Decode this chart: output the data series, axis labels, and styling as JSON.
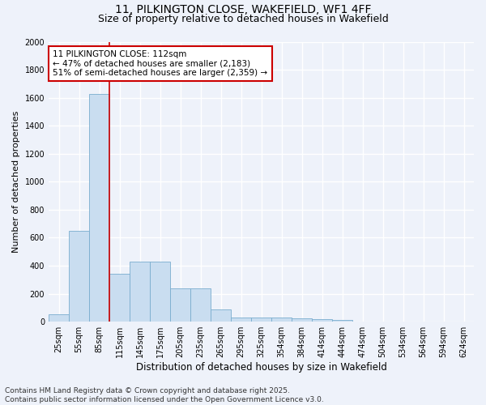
{
  "title_line1": "11, PILKINGTON CLOSE, WAKEFIELD, WF1 4FF",
  "title_line2": "Size of property relative to detached houses in Wakefield",
  "xlabel": "Distribution of detached houses by size in Wakefield",
  "ylabel": "Number of detached properties",
  "categories": [
    "25sqm",
    "55sqm",
    "85sqm",
    "115sqm",
    "145sqm",
    "175sqm",
    "205sqm",
    "235sqm",
    "265sqm",
    "295sqm",
    "325sqm",
    "354sqm",
    "384sqm",
    "414sqm",
    "444sqm",
    "474sqm",
    "504sqm",
    "534sqm",
    "564sqm",
    "594sqm",
    "624sqm"
  ],
  "values": [
    55,
    650,
    1625,
    340,
    430,
    430,
    240,
    240,
    90,
    30,
    30,
    30,
    25,
    20,
    15,
    0,
    0,
    0,
    0,
    0,
    0
  ],
  "bar_color": "#c9ddf0",
  "bar_edge_color": "#7aadce",
  "vline_color": "#cc0000",
  "vline_x_index": 2.5,
  "annotation_text": "11 PILKINGTON CLOSE: 112sqm\n← 47% of detached houses are smaller (2,183)\n51% of semi-detached houses are larger (2,359) →",
  "annotation_box_facecolor": "#ffffff",
  "annotation_box_edgecolor": "#cc0000",
  "ylim": [
    0,
    2000
  ],
  "yticks": [
    0,
    200,
    400,
    600,
    800,
    1000,
    1200,
    1400,
    1600,
    1800,
    2000
  ],
  "background_color": "#eef2fa",
  "grid_color": "#ffffff",
  "footer_line1": "Contains HM Land Registry data © Crown copyright and database right 2025.",
  "footer_line2": "Contains public sector information licensed under the Open Government Licence v3.0.",
  "title_fontsize": 10,
  "subtitle_fontsize": 9,
  "annotation_fontsize": 7.5,
  "tick_fontsize": 7,
  "ylabel_fontsize": 8,
  "xlabel_fontsize": 8.5,
  "footer_fontsize": 6.5
}
